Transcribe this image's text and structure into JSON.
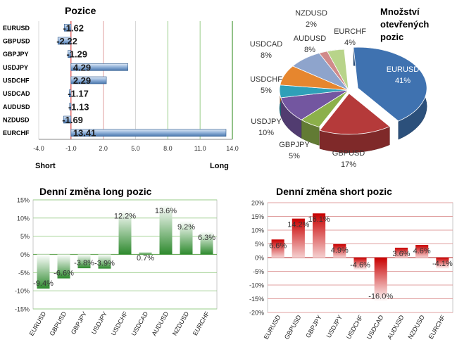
{
  "colors": {
    "green_line": "#4a9a3a",
    "red_line": "#d02020",
    "grid_pink": "#e0a0a0",
    "grid_green": "#9acd8a"
  },
  "chart_data": [
    {
      "id": "positions",
      "type": "bar",
      "orientation": "horizontal",
      "title": "Pozice",
      "xlabel_left": "Short",
      "xlabel_right": "Long",
      "categories": [
        "EURUSD",
        "GBPUSD",
        "GBPJPY",
        "USDJPY",
        "USDCHF",
        "USDCAD",
        "AUDUSD",
        "NZDUSD",
        "EURCHF"
      ],
      "values": [
        -1.62,
        -2.22,
        -1.29,
        4.29,
        2.29,
        -1.17,
        -1.13,
        -1.69,
        13.41
      ],
      "value_labels": [
        "-1.62",
        "-2.22",
        "-1.29",
        "4.29",
        "2.29",
        "-1.17",
        "-1.13",
        "-1.69",
        "13.41"
      ],
      "xlim": [
        -4.0,
        14.0
      ],
      "xticks": [
        -4.0,
        -1.0,
        2.0,
        5.0,
        8.0,
        11.0,
        14.0
      ],
      "xtick_labels": [
        "-4.0",
        "-1.0",
        "2.0",
        "5.0",
        "8.0",
        "11.0",
        "14.0"
      ],
      "zero": -1.0
    },
    {
      "id": "open-positions-pie",
      "type": "pie",
      "title": "Množství otevřených pozic",
      "title_lines": [
        "Množství",
        "otevřených",
        "pozic"
      ],
      "slices": [
        {
          "name": "EURUSD",
          "label": "41%",
          "value": 41,
          "color": "#3f72b0"
        },
        {
          "name": "GBPUSD",
          "label": "17%",
          "value": 17,
          "color": "#b53a3a"
        },
        {
          "name": "GBPJPY",
          "label": "5%",
          "value": 5,
          "color": "#8cb04a"
        },
        {
          "name": "USDJPY",
          "label": "10%",
          "value": 10,
          "color": "#7356a0"
        },
        {
          "name": "USDCHF",
          "label": "5%",
          "value": 5,
          "color": "#2fa0b8"
        },
        {
          "name": "USDCAD",
          "label": "8%",
          "value": 8,
          "color": "#e6862e"
        },
        {
          "name": "AUDUSD",
          "label": "8%",
          "value": 8,
          "color": "#8ea4cc"
        },
        {
          "name": "NZDUSD",
          "label": "2%",
          "value": 2,
          "color": "#d08a8a"
        },
        {
          "name": "EURCHF",
          "label": "4%",
          "value": 4,
          "color": "#b8d48a"
        }
      ]
    },
    {
      "id": "daily-long",
      "type": "bar",
      "title": "Denní změna long pozic",
      "categories": [
        "EURUSD",
        "GBPUSD",
        "GBPJPY",
        "USDJPY",
        "USDCHF",
        "USDCAD",
        "AUDUSD",
        "NZDUSD",
        "EURCHF"
      ],
      "values": [
        -9.4,
        -6.6,
        -3.8,
        -3.9,
        12.2,
        0.7,
        13.6,
        9.2,
        6.3
      ],
      "value_labels": [
        "-9.4%",
        "-6.6%",
        "-3.8%",
        "-3.9%",
        "12.2%",
        "0.7%",
        "13.6%",
        "9.2%",
        "6.3%"
      ],
      "ylim": [
        -15,
        15
      ],
      "yticks": [
        -15,
        -10,
        -5,
        0,
        5,
        10,
        15
      ],
      "ytick_labels": [
        "-15%",
        "-10%",
        "-5%",
        "0%",
        "5%",
        "10%",
        "15%"
      ]
    },
    {
      "id": "daily-short",
      "type": "bar",
      "title": "Denní změna short pozic",
      "categories": [
        "EURUSD",
        "GBPUSD",
        "GBPJPY",
        "USDJPY",
        "USDCHF",
        "USDCAD",
        "AUDUSD",
        "NZDUSD",
        "EURCHF"
      ],
      "values": [
        6.6,
        14.2,
        16.1,
        4.9,
        -4.6,
        -16.0,
        3.6,
        4.6,
        -4.1
      ],
      "value_labels": [
        "6.6%",
        "14.2%",
        "16.1%",
        "4.9%",
        "-4.6%",
        "-16.0%",
        "3.6%",
        "4.6%",
        "-4.1%"
      ],
      "ylim": [
        -20,
        20
      ],
      "yticks": [
        -20,
        -15,
        -10,
        -5,
        0,
        5,
        10,
        15,
        20
      ],
      "ytick_labels": [
        "-20%",
        "-15%",
        "-10%",
        "-5%",
        "0%",
        "5%",
        "10%",
        "15%",
        "20%"
      ]
    }
  ]
}
